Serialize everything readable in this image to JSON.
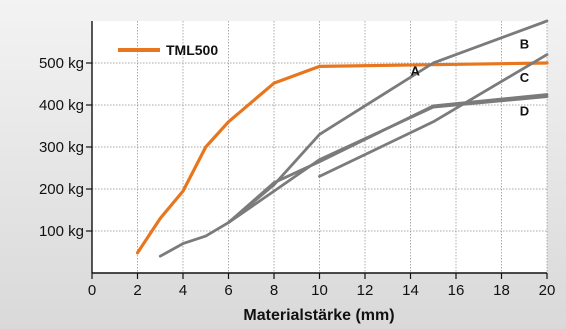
{
  "chart_data": {
    "type": "line",
    "title": "",
    "xlabel": "Materialstärke (mm)",
    "ylabel": "",
    "xlim": [
      0,
      20
    ],
    "ylim": [
      0,
      600
    ],
    "x_ticks": [
      0,
      2,
      4,
      6,
      8,
      10,
      12,
      14,
      16,
      18,
      20
    ],
    "y_ticks": [
      {
        "value": 100,
        "label": "100 kg"
      },
      {
        "value": 200,
        "label": "200 kg"
      },
      {
        "value": 300,
        "label": "300 kg"
      },
      {
        "value": 400,
        "label": "400 kg"
      },
      {
        "value": 500,
        "label": "500 kg"
      }
    ],
    "grid": true,
    "legend": {
      "position": "top-left",
      "entries": [
        {
          "name": "TML500",
          "color": "#e8761e"
        }
      ]
    },
    "series": [
      {
        "name": "TML500",
        "color": "#e8761e",
        "x": [
          2,
          3,
          4,
          5,
          6,
          8,
          10,
          20
        ],
        "y": [
          48,
          130,
          195,
          300,
          360,
          452,
          492,
          500
        ]
      },
      {
        "name": "A",
        "color": "#7b7b7b",
        "x": [
          6,
          8,
          10,
          15,
          16,
          20
        ],
        "y": [
          120,
          210,
          330,
          500,
          520,
          600
        ]
      },
      {
        "name": "B",
        "color": "#7b7b7b",
        "x": [
          10,
          15,
          20
        ],
        "y": [
          230,
          360,
          520
        ]
      },
      {
        "name": "C",
        "color": "#7b7b7b",
        "x": [
          3,
          4,
          5,
          6,
          8,
          10,
          15,
          20
        ],
        "y": [
          40,
          70,
          88,
          120,
          215,
          265,
          398,
          425
        ]
      },
      {
        "name": "D",
        "color": "#7b7b7b",
        "x": [
          6,
          8,
          10,
          15,
          20
        ],
        "y": [
          120,
          195,
          270,
          395,
          420
        ]
      }
    ],
    "annotations": [
      {
        "text": "A",
        "x": 14,
        "y": 470
      },
      {
        "text": "B",
        "x": 18.8,
        "y": 535
      },
      {
        "text": "C",
        "x": 18.8,
        "y": 455
      },
      {
        "text": "D",
        "x": 18.8,
        "y": 375
      }
    ]
  }
}
